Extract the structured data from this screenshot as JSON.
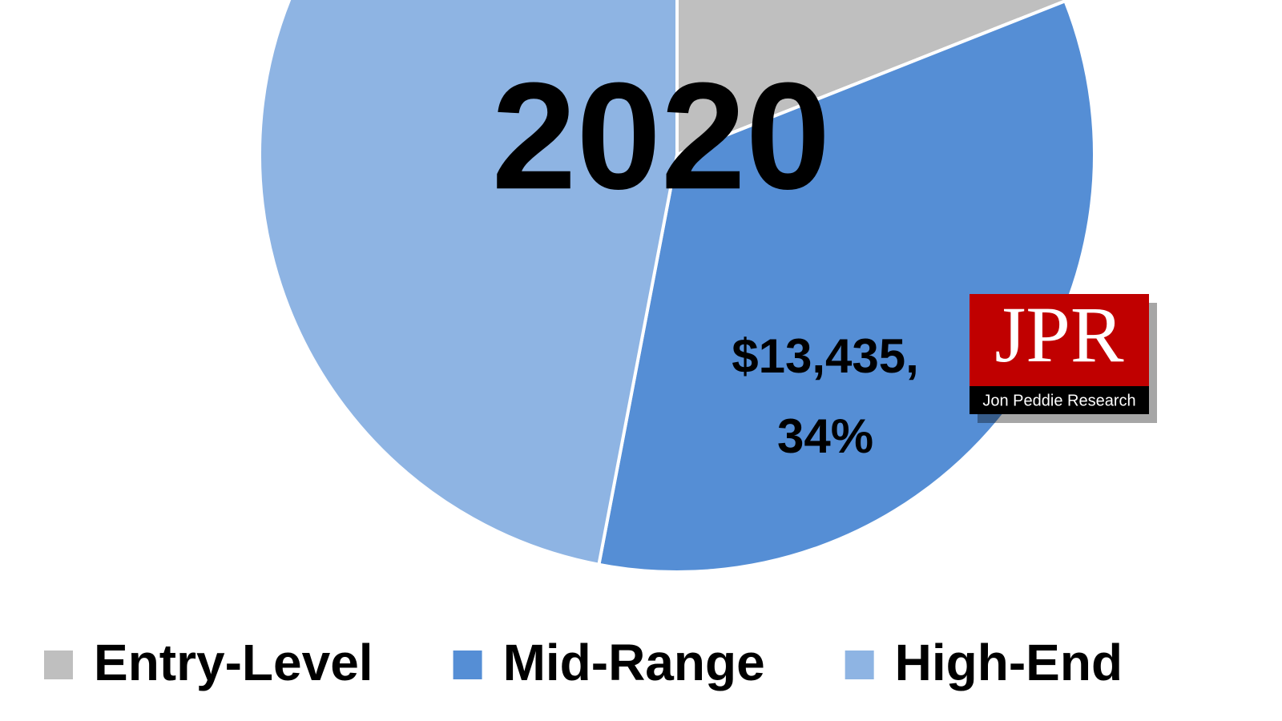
{
  "chart_data": {
    "type": "pie",
    "title": "2020",
    "categories": [
      "Entry-Level",
      "Mid-Range",
      "High-End"
    ],
    "values": [
      19,
      34,
      47
    ],
    "value_labels": [
      null,
      "$13,435, 34%",
      null
    ],
    "colors": [
      "#bfbfbf",
      "#558ed5",
      "#8eb4e3"
    ],
    "legend": "bottom",
    "logo": {
      "title": "JPR",
      "subtitle": "Jon Peddie Research"
    }
  }
}
